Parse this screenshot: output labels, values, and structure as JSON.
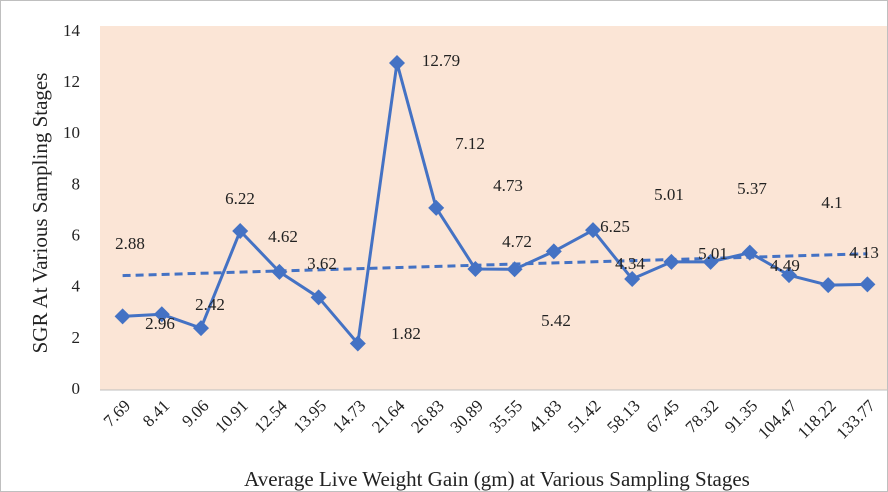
{
  "chart_data": {
    "type": "line",
    "x_label": "Average Live Weight Gain (gm) at Various Sampling Stages",
    "y_label": "SGR At Various Sampling Stages",
    "categories": [
      "7.69",
      "8.41",
      "9.06",
      "10.91",
      "12.54",
      "13.95",
      "14.73",
      "21.64",
      "26.83",
      "30.89",
      "35.55",
      "41.83",
      "51.42",
      "58.13",
      "67.45",
      "78.32",
      "91.35",
      "104.47",
      "118.22",
      "133.77"
    ],
    "series": [
      {
        "name": "SGR",
        "color": "#4472c4",
        "values": [
          2.88,
          2.96,
          2.42,
          6.22,
          4.62,
          3.62,
          1.82,
          12.79,
          7.12,
          4.73,
          4.72,
          5.42,
          6.25,
          4.34,
          5.01,
          5.01,
          5.37,
          4.49,
          4.1,
          4.13
        ]
      }
    ],
    "ylim": [
      0,
      14
    ],
    "yticks": [
      0,
      2,
      4,
      6,
      8,
      10,
      12,
      14
    ],
    "trendline": "linear",
    "plot_background": "#fbe5d6"
  }
}
